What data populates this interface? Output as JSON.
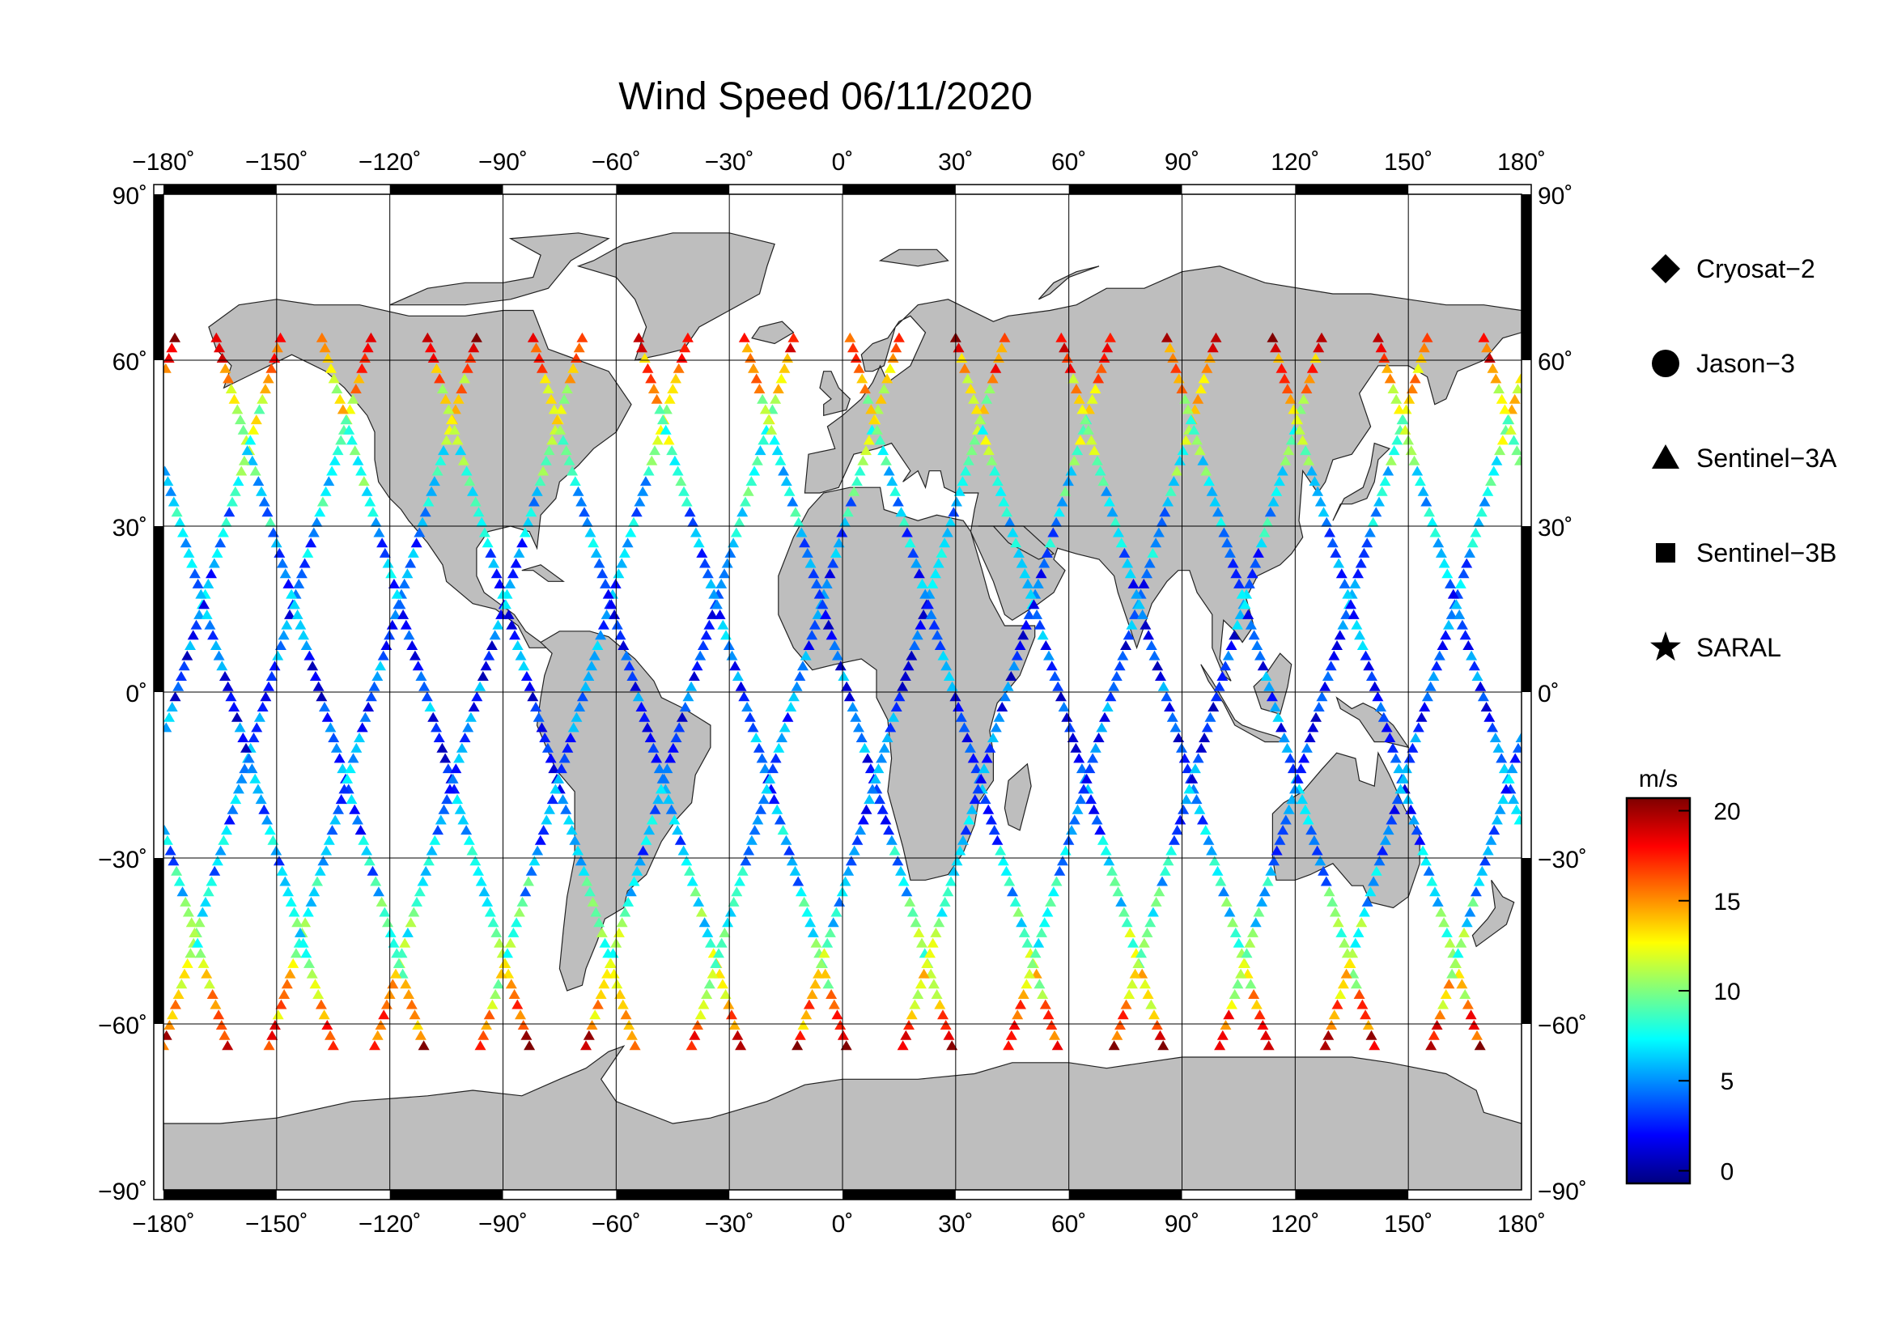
{
  "title": "Wind Speed 06/11/2020",
  "map": {
    "lon_range": [
      -180,
      180
    ],
    "lat_range": [
      -90,
      90
    ],
    "lon_ticks": [
      -180,
      -150,
      -120,
      -90,
      -60,
      -30,
      0,
      30,
      60,
      90,
      120,
      150,
      180
    ],
    "lat_ticks": [
      90,
      60,
      30,
      0,
      -30,
      -60,
      -90
    ],
    "lon_tick_labels": [
      "−180˚",
      "−150˚",
      "−120˚",
      "−90˚",
      "−60˚",
      "−30˚",
      "0˚",
      "30˚",
      "60˚",
      "90˚",
      "120˚",
      "150˚",
      "180˚"
    ],
    "lat_tick_labels": [
      "90˚",
      "60˚",
      "30˚",
      "0˚",
      "−30˚",
      "−60˚",
      "−90˚"
    ],
    "land_color": "#bebebe",
    "ocean_color": "#ffffff",
    "grid": true
  },
  "legend": {
    "items": [
      {
        "label": "Cryosat−2",
        "symbol": "diamond"
      },
      {
        "label": "Jason−3",
        "symbol": "circle"
      },
      {
        "label": "Sentinel−3A",
        "symbol": "triangle"
      },
      {
        "label": "Sentinel−3B",
        "symbol": "square"
      },
      {
        "label": "SARAL",
        "symbol": "star"
      }
    ]
  },
  "colorbar": {
    "unit": "m/s",
    "min": 0,
    "max": 20,
    "ticks": [
      0,
      5,
      10,
      15,
      20
    ],
    "tick_labels": [
      "0",
      "5",
      "10",
      "15",
      "20"
    ],
    "colormap": [
      "#00007f",
      "#0000ff",
      "#007fff",
      "#00ffff",
      "#7fff7f",
      "#ffff00",
      "#ff7f00",
      "#ff0000",
      "#7f0000"
    ]
  }
}
